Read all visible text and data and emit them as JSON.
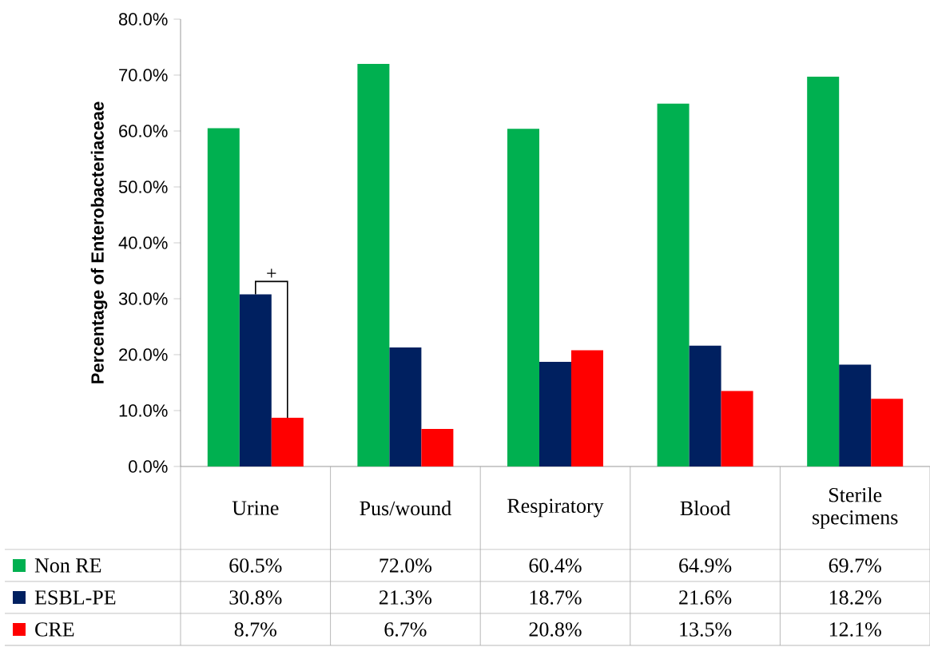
{
  "chart_data": {
    "type": "bar",
    "ylabel": "Percentage of Enterobacteriaceae",
    "categories": [
      "Urine",
      "Pus/wound",
      "Respiratory",
      "Blood",
      "Sterile specimens"
    ],
    "series": [
      {
        "name": "Non RE",
        "color": "#00b050",
        "values": [
          60.5,
          72.0,
          60.4,
          64.9,
          69.7
        ],
        "value_labels": [
          "60.5%",
          "72.0%",
          "60.4%",
          "64.9%",
          "69.7%"
        ]
      },
      {
        "name": "ESBL-PE",
        "color": "#002060",
        "values": [
          30.8,
          21.3,
          18.7,
          21.6,
          18.2
        ],
        "value_labels": [
          "30.8%",
          "21.3%",
          "18.7%",
          "21.6%",
          "18.2%"
        ]
      },
      {
        "name": "CRE",
        "color": "#ff0000",
        "values": [
          8.7,
          6.7,
          20.8,
          13.5,
          12.1
        ],
        "value_labels": [
          "8.7%",
          "6.7%",
          "20.8%",
          "13.5%",
          "12.1%"
        ]
      }
    ],
    "ylim": [
      0,
      80
    ],
    "yticks": [
      {
        "value": 0,
        "label": "0.0%"
      },
      {
        "value": 10,
        "label": "10.0%"
      },
      {
        "value": 20,
        "label": "20.0%"
      },
      {
        "value": 30,
        "label": "30.0%"
      },
      {
        "value": 40,
        "label": "40.0%"
      },
      {
        "value": 50,
        "label": "50.0%"
      },
      {
        "value": 60,
        "label": "60.0%"
      },
      {
        "value": 70,
        "label": "70.0%"
      },
      {
        "value": 80,
        "label": "80.0%"
      }
    ],
    "annotations": [
      {
        "text": "+",
        "x": "Urine",
        "y": 30.8
      }
    ],
    "legend": "bottom",
    "grid": false
  }
}
